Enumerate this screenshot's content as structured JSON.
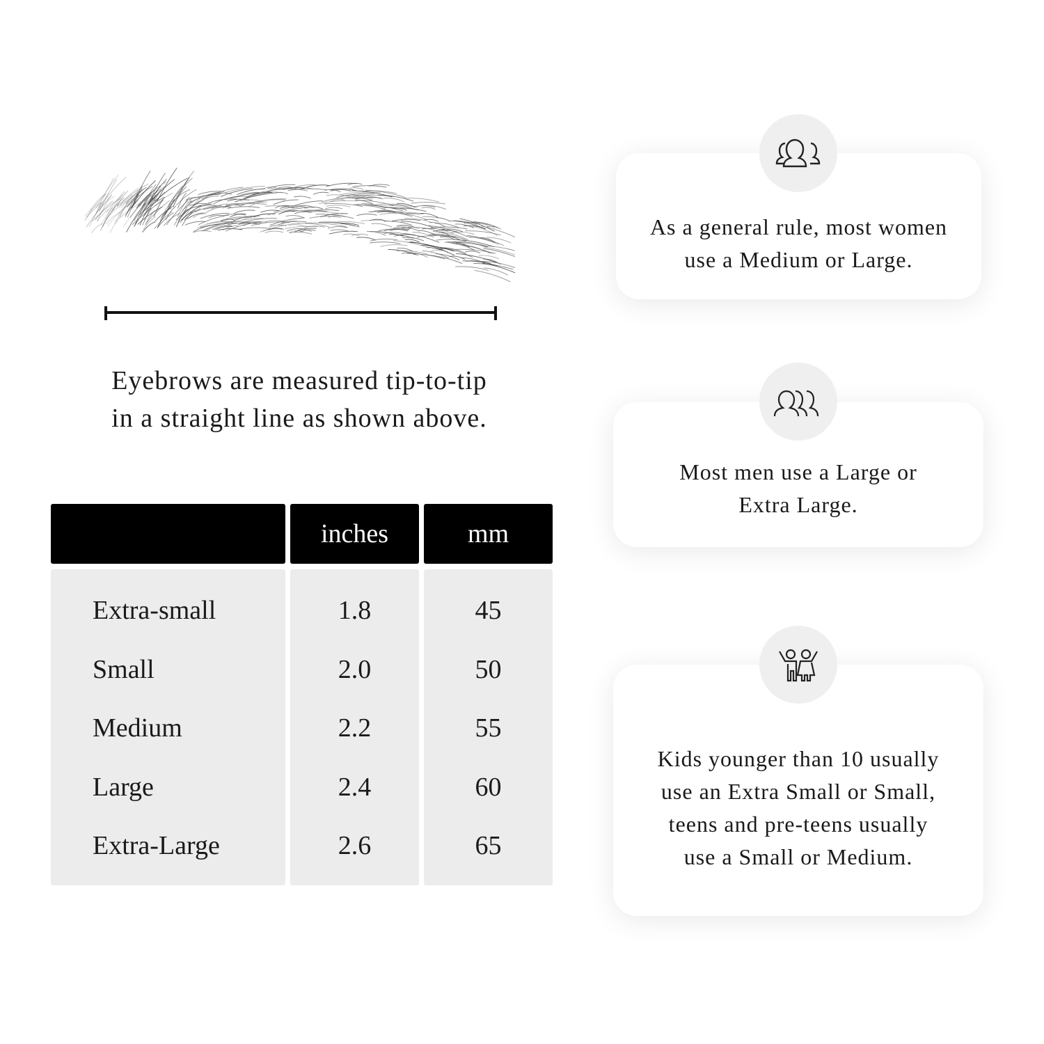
{
  "caption": {
    "line1": "Eyebrows are measured tip-to-tip",
    "line2": "in a straight line as shown above."
  },
  "table": {
    "headers": [
      "",
      "inches",
      "mm"
    ],
    "rows": [
      {
        "size": "Extra-small",
        "inches": "1.8",
        "mm": "45"
      },
      {
        "size": "Small",
        "inches": "2.0",
        "mm": "50"
      },
      {
        "size": "Medium",
        "inches": "2.2",
        "mm": "55"
      },
      {
        "size": "Large",
        "inches": "2.4",
        "mm": "60"
      },
      {
        "size": "Extra-Large",
        "inches": "2.6",
        "mm": "65"
      }
    ]
  },
  "cards": [
    {
      "icon": "women-group-icon",
      "text": "As a general rule, most women use a Medium or Large."
    },
    {
      "icon": "men-group-icon",
      "text": "Most men use a Large or Extra Large."
    },
    {
      "icon": "kids-icon",
      "text": "Kids younger than 10 usually use an Extra Small or Small, teens and pre-teens usually use a Small or Medium."
    }
  ]
}
